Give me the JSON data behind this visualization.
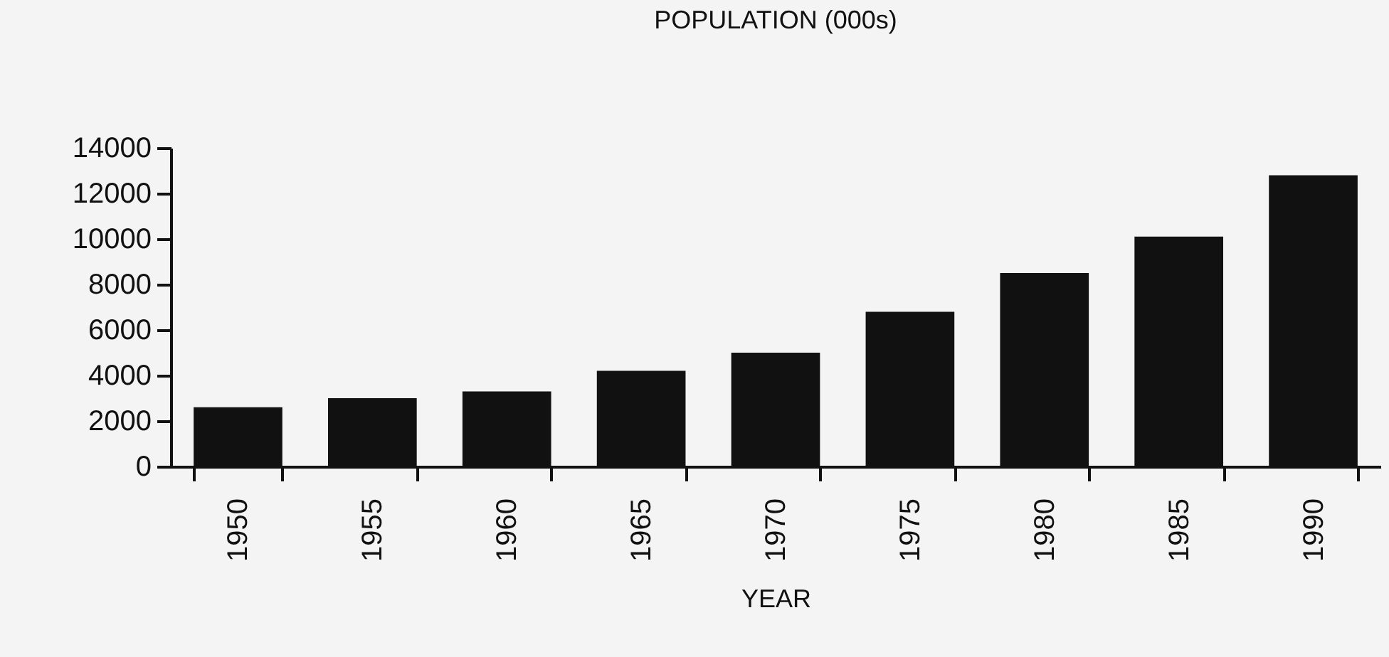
{
  "chart_data": {
    "type": "bar",
    "title": "POPULATION (000s)",
    "xlabel": "YEAR",
    "categories": [
      "1950",
      "1955",
      "1960",
      "1965",
      "1970",
      "1975",
      "1980",
      "1985",
      "1990"
    ],
    "values": [
      2600,
      3000,
      3300,
      4200,
      5000,
      6800,
      8500,
      10100,
      12800
    ],
    "color": "#111111",
    "ylim": [
      0,
      14000
    ],
    "yticks": [
      0,
      2000,
      4000,
      6000,
      8000,
      10000,
      12000,
      14000
    ],
    "grid": false
  }
}
